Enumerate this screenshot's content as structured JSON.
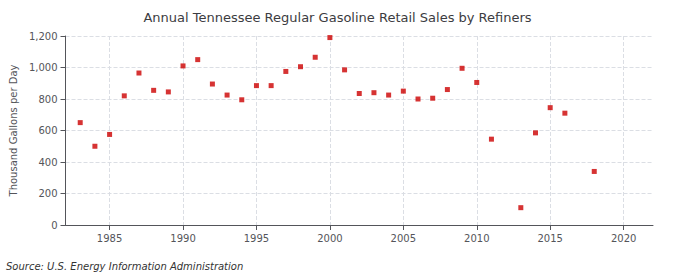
{
  "chart_data": {
    "type": "scatter",
    "title": "Annual Tennessee Regular Gasoline Retail Sales by Refiners",
    "ylabel": "Thousand Gallons per Day",
    "annotations": [
      "Source: U.S. Energy Information Administration"
    ],
    "x": [
      1983,
      1984,
      1985,
      1986,
      1987,
      1988,
      1989,
      1990,
      1991,
      1992,
      1993,
      1994,
      1995,
      1996,
      1997,
      1998,
      1999,
      2000,
      2001,
      2002,
      2003,
      2004,
      2005,
      2006,
      2007,
      2008,
      2009,
      2010,
      2011,
      2013,
      2014,
      2015,
      2016,
      2018
    ],
    "values": [
      650,
      500,
      575,
      820,
      965,
      855,
      845,
      1010,
      1050,
      895,
      825,
      795,
      885,
      885,
      975,
      1005,
      1065,
      1190,
      985,
      835,
      840,
      825,
      850,
      800,
      805,
      860,
      995,
      905,
      545,
      110,
      585,
      745,
      710,
      340
    ],
    "color": "#cc0000",
    "marker": "square",
    "xlim": [
      1982,
      2022
    ],
    "xticks": [
      1985,
      1990,
      1995,
      2000,
      2005,
      2010,
      2015,
      2020
    ],
    "ylim": [
      0,
      1200
    ],
    "yticks": [
      0,
      200,
      400,
      600,
      800,
      {
        "value": 1000,
        "label": "1,000"
      },
      {
        "value": 1200,
        "label": "1,200"
      }
    ],
    "grid": true
  }
}
